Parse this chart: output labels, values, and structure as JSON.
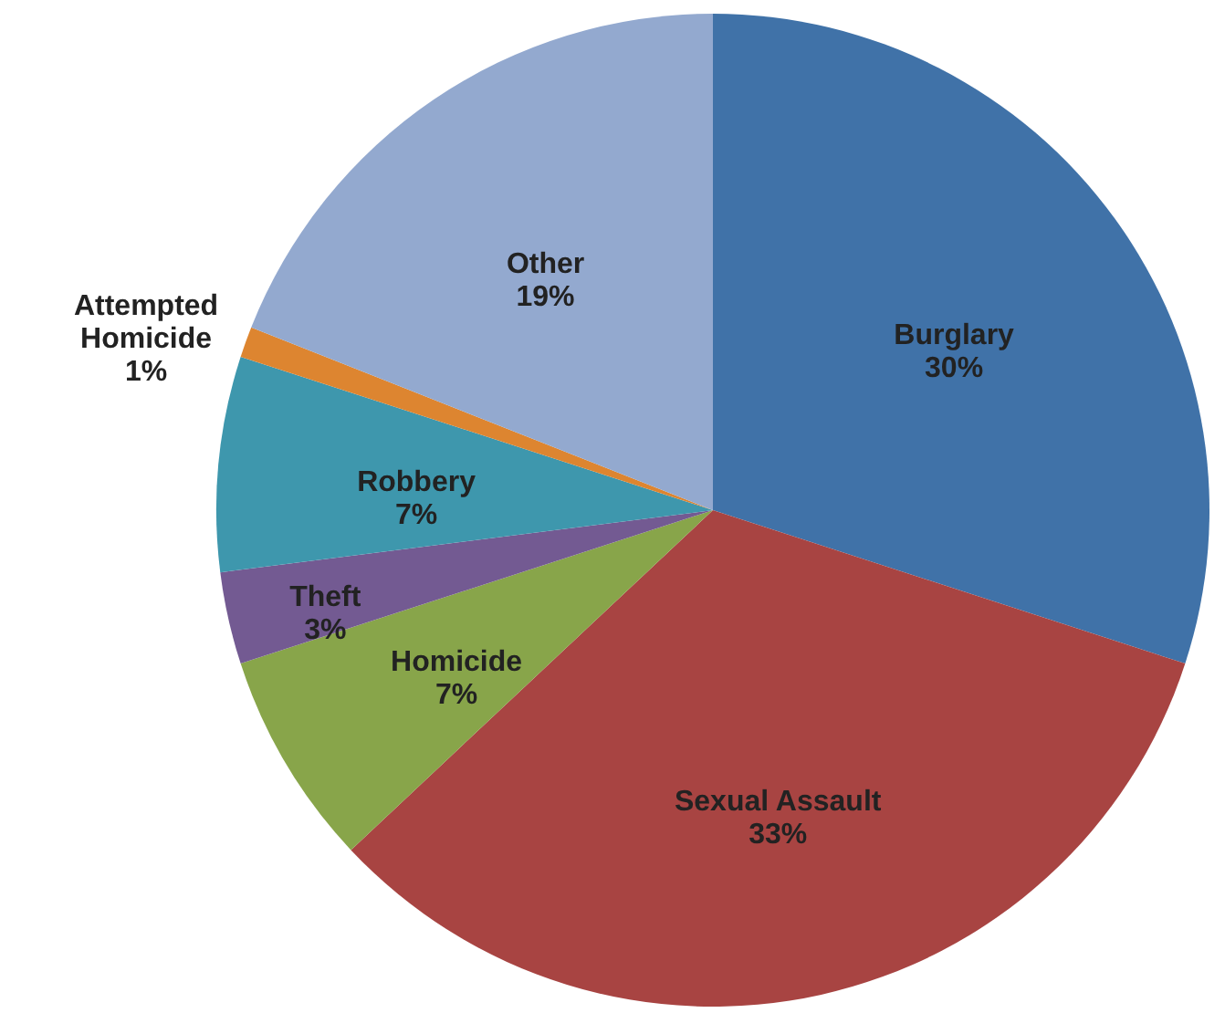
{
  "chart_data": {
    "type": "pie",
    "categories": [
      "Burglary",
      "Sexual Assault",
      "Homicide",
      "Theft",
      "Robbery",
      "Attempted Homicide",
      "Other"
    ],
    "values": [
      30,
      33,
      7,
      3,
      7,
      1,
      19
    ],
    "value_labels": [
      "30%",
      "33%",
      "7%",
      "3%",
      "7%",
      "1%",
      "19%"
    ],
    "colors": [
      "#4072a8",
      "#a84442",
      "#88a54a",
      "#735a92",
      "#3e97ad",
      "#dd8530",
      "#93a9cf"
    ]
  }
}
